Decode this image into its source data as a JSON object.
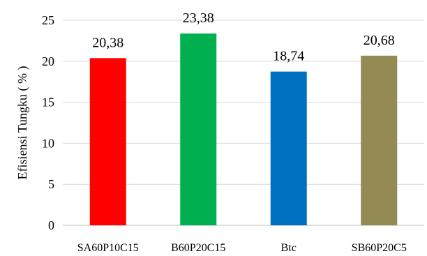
{
  "chart_data": {
    "type": "bar",
    "categories": [
      "SA60P10C15",
      "B60P20C15",
      "Btc",
      "SB60P20C5"
    ],
    "values": [
      20.38,
      23.38,
      18.74,
      20.68
    ],
    "data_labels": [
      "20,38",
      "23,38",
      "18,74",
      "20,68"
    ],
    "colors": [
      "#ff0000",
      "#00b050",
      "#0070c0",
      "#948a54"
    ],
    "title": "",
    "xlabel": "",
    "ylabel": "Efisiensi Tungku ( % )",
    "ylim": [
      0,
      25
    ],
    "yticks": [
      0,
      5,
      10,
      15,
      20,
      25
    ],
    "grid": true,
    "legend": "none"
  }
}
